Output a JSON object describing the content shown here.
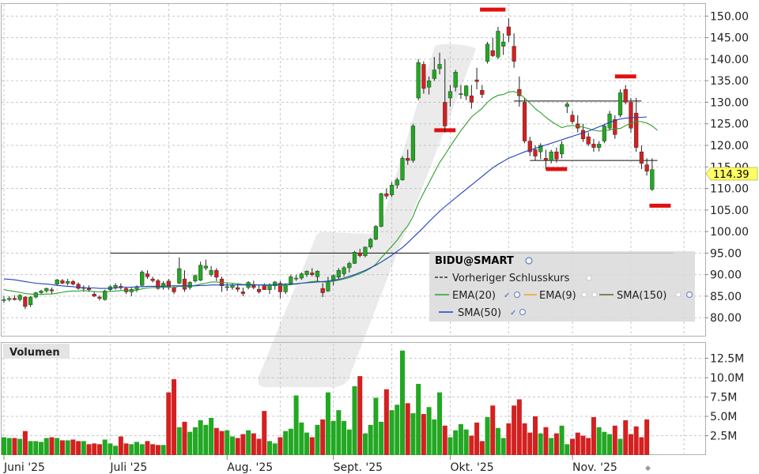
{
  "chart_data": {
    "type": "candlestick",
    "symbol_label": "BIDU@SMART",
    "last_price_label": "114.39",
    "price_axis": {
      "ylim": [
        76,
        153
      ],
      "ticks": [
        "150.00",
        "145.00",
        "140.00",
        "135.00",
        "130.00",
        "125.00",
        "120.00",
        "115.00",
        "110.00",
        "105.00",
        "100.00",
        "95.00",
        "90.00",
        "85.00",
        "80.00"
      ],
      "tick_values": [
        150,
        145,
        140,
        135,
        130,
        125,
        120,
        115,
        110,
        105,
        100,
        95,
        90,
        85,
        80
      ]
    },
    "volume_panel": {
      "label": "Volumen",
      "ylim": [
        0,
        14.5
      ],
      "ticks": [
        "12.5M",
        "10.0M",
        "7.5M",
        "5.0M",
        "2.5M"
      ],
      "tick_values": [
        12.5,
        10,
        7.5,
        5,
        2.5
      ]
    },
    "x_axis": {
      "labels": [
        {
          "text": "Juni '25",
          "index": 0
        },
        {
          "text": "Juli '25",
          "index": 20
        },
        {
          "text": "Aug. '25",
          "index": 42
        },
        {
          "text": "Sept. '25",
          "index": 62
        },
        {
          "text": "Okt. '25",
          "index": 84
        },
        {
          "text": "Nov. '25",
          "index": 107
        }
      ]
    },
    "legend": [
      {
        "text": "Vorheriger Schlusskurs",
        "style": "dashed",
        "color": "#333333"
      },
      {
        "text": "EMA(20)",
        "color": "#2aa02a"
      },
      {
        "text": "EMA(9)",
        "color": "#f0a030"
      },
      {
        "text": "SMA(150)",
        "color": "#556b2f"
      },
      {
        "text": "SMA(50)",
        "color": "#2848c8"
      }
    ],
    "colors": {
      "up": "#22a822",
      "down": "#d42020",
      "sma50": "#2040c0",
      "ema20": "#2aa02a",
      "marker": "#e01010"
    },
    "ohlc": [
      [
        84,
        85,
        83.5,
        84.2
      ],
      [
        84.2,
        85,
        83.8,
        84.5
      ],
      [
        84.5,
        85.2,
        84,
        84.2
      ],
      [
        84.2,
        85.5,
        83.8,
        85.2
      ],
      [
        84.8,
        85,
        82,
        82.6
      ],
      [
        83,
        85,
        82.5,
        84.8
      ],
      [
        84.8,
        86,
        84.5,
        85.8
      ],
      [
        85.8,
        86.5,
        85.5,
        86.2
      ],
      [
        86.2,
        87,
        85.8,
        86.8
      ],
      [
        86.5,
        87,
        85.5,
        86.2
      ],
      [
        87.8,
        89,
        87.5,
        88.8
      ],
      [
        88.6,
        89,
        87.8,
        88
      ],
      [
        88,
        89,
        87.5,
        88.4
      ],
      [
        88.4,
        88.8,
        87.5,
        87.8
      ],
      [
        87.8,
        88.2,
        86.5,
        86.8
      ],
      [
        86.8,
        87.5,
        86,
        87
      ],
      [
        86.8,
        87.5,
        86,
        86.5
      ],
      [
        85.5,
        86,
        84.8,
        85
      ],
      [
        84.8,
        85.2,
        84,
        84.5
      ],
      [
        84.2,
        86.5,
        84,
        86.2
      ],
      [
        86.5,
        87.5,
        86,
        87.2
      ],
      [
        87,
        88,
        86.5,
        87.5
      ],
      [
        87.3,
        88,
        86.5,
        87
      ],
      [
        86.8,
        87.2,
        85.5,
        86
      ],
      [
        86,
        87,
        85,
        86.6
      ],
      [
        86.6,
        87.5,
        86,
        87.2
      ],
      [
        87.5,
        91,
        87.3,
        90.6
      ],
      [
        90.2,
        91,
        89,
        89.5
      ],
      [
        89,
        89.5,
        88.2,
        88.6
      ],
      [
        88.6,
        89,
        86.5,
        86.8
      ],
      [
        87,
        88.5,
        86.5,
        88
      ],
      [
        88.5,
        89,
        86.5,
        87
      ],
      [
        87,
        87.5,
        85.5,
        86
      ],
      [
        88,
        94,
        87.8,
        91.4
      ],
      [
        89,
        91,
        86,
        86.6
      ],
      [
        87,
        88.5,
        86.5,
        88.2
      ],
      [
        88.5,
        90,
        88.2,
        89.8
      ],
      [
        88.7,
        93,
        88.5,
        92.2
      ],
      [
        91.5,
        93.5,
        91,
        92
      ],
      [
        90,
        92,
        89.5,
        91
      ],
      [
        91,
        91.5,
        88.5,
        89.4
      ],
      [
        89,
        89.5,
        86,
        87.4
      ],
      [
        87,
        88,
        86.2,
        87.2
      ],
      [
        87,
        88,
        86.5,
        87.6
      ],
      [
        87,
        88,
        86,
        86.6
      ],
      [
        86,
        87,
        85,
        85.6
      ],
      [
        87,
        88.5,
        86.6,
        88.2
      ],
      [
        87.6,
        88.6,
        86.6,
        87
      ],
      [
        86.6,
        87.6,
        85.6,
        86
      ],
      [
        87.5,
        88,
        86.5,
        86.5
      ],
      [
        86.5,
        88,
        85.5,
        87.6
      ],
      [
        87.4,
        88.5,
        86.5,
        88.3
      ],
      [
        88,
        88.5,
        84.5,
        86
      ],
      [
        86,
        88,
        85.5,
        87.6
      ],
      [
        88,
        90,
        87.5,
        89.5
      ],
      [
        89,
        90,
        88.5,
        89.2
      ],
      [
        89.2,
        90.5,
        88.8,
        90.2
      ],
      [
        90,
        91,
        89.5,
        90.8
      ],
      [
        90.4,
        91.5,
        89.6,
        90
      ],
      [
        89.5,
        91,
        88.5,
        90.8
      ],
      [
        86.8,
        88,
        84.8,
        85.8
      ],
      [
        86.2,
        89.5,
        86,
        88.4
      ],
      [
        88.5,
        90,
        87.5,
        89.8
      ],
      [
        89.4,
        91.5,
        89,
        91
      ],
      [
        90.2,
        92,
        89.5,
        91.6
      ],
      [
        91.6,
        93,
        90.5,
        92.6
      ],
      [
        92.6,
        95.5,
        92.5,
        95.2
      ],
      [
        95,
        96,
        94,
        94.4
      ],
      [
        94.4,
        96.5,
        94,
        96.4
      ],
      [
        96.4,
        98.5,
        96,
        98.2
      ],
      [
        98.2,
        101.5,
        98,
        101.2
      ],
      [
        101.2,
        109,
        101,
        108.8
      ],
      [
        108.8,
        110,
        107.5,
        108.2
      ],
      [
        108.5,
        111.5,
        108,
        110.8
      ],
      [
        110.8,
        112.5,
        110,
        112
      ],
      [
        112,
        117.5,
        111.8,
        117
      ],
      [
        117,
        119,
        115.5,
        116.5
      ],
      [
        116.5,
        125,
        116,
        124.5
      ],
      [
        131,
        140,
        130.5,
        139.2
      ],
      [
        138.8,
        139.5,
        132,
        133.2
      ],
      [
        133.5,
        136,
        131.8,
        135
      ],
      [
        135.5,
        140.5,
        135,
        137.5
      ],
      [
        137.8,
        141.5,
        136.5,
        138.8
      ],
      [
        130,
        140,
        123,
        124.5
      ],
      [
        131,
        134,
        129,
        132.5
      ],
      [
        133.5,
        137.5,
        132.5,
        137
      ],
      [
        132,
        134,
        130.8,
        132
      ],
      [
        131.5,
        134,
        130.5,
        133.8
      ],
      [
        131.5,
        134,
        128.5,
        130
      ],
      [
        135.2,
        138,
        133,
        134.8
      ],
      [
        132.8,
        134,
        131,
        131.8
      ],
      [
        139.5,
        144,
        139,
        143.5
      ],
      [
        142,
        145,
        140.5,
        140.8
      ],
      [
        140.5,
        147.5,
        140,
        146.5
      ],
      [
        143,
        146,
        141,
        144
      ],
      [
        147.5,
        149.5,
        144,
        145.5
      ],
      [
        143,
        146,
        138,
        139.5
      ],
      [
        133,
        136,
        129,
        131.5
      ],
      [
        130,
        131,
        120.5,
        121
      ],
      [
        121,
        122,
        117.5,
        118.5
      ],
      [
        119,
        120,
        116.5,
        117.5
      ],
      [
        118.5,
        120.5,
        116.8,
        120
      ],
      [
        117,
        119,
        114.5,
        116.5
      ],
      [
        116.5,
        119,
        115.8,
        118.5
      ],
      [
        118.5,
        119.5,
        116,
        116.8
      ],
      [
        118,
        121,
        117,
        120.2
      ],
      [
        129,
        130,
        127.5,
        129.6
      ],
      [
        127,
        128,
        125,
        125.5
      ],
      [
        125,
        127,
        123,
        124
      ],
      [
        123.5,
        125,
        120.8,
        121.5
      ],
      [
        122,
        123,
        119.8,
        120.3
      ],
      [
        120.3,
        121.5,
        118.5,
        119.5
      ],
      [
        119.5,
        121,
        118.6,
        120.3
      ],
      [
        121,
        125,
        120.5,
        124.5
      ],
      [
        124,
        128,
        123.4,
        127.3
      ],
      [
        126,
        127,
        121.5,
        122.5
      ],
      [
        127,
        133,
        126.5,
        132.2
      ],
      [
        133,
        134,
        129.5,
        130
      ],
      [
        130,
        131,
        123,
        124
      ],
      [
        127.5,
        131,
        118.5,
        119.5
      ],
      [
        118.5,
        120,
        114.5,
        115.8
      ],
      [
        115.5,
        117,
        113,
        114
      ],
      [
        109.8,
        117,
        109.4,
        114.39
      ]
    ],
    "volume": [
      2.3,
      2.2,
      2.2,
      2.1,
      3.1,
      1.8,
      1.8,
      1.7,
      2.2,
      2.3,
      2.2,
      1.9,
      1.9,
      2.0,
      1.8,
      1.8,
      1.4,
      1.5,
      1.4,
      2.0,
      1.5,
      1.2,
      2.4,
      1.5,
      1.4,
      1.7,
      1.4,
      1.8,
      1.4,
      1.3,
      1.3,
      8.1,
      9.8,
      3.6,
      4.3,
      3.0,
      3.6,
      4.5,
      3.9,
      4.8,
      3.5,
      3.1,
      3.2,
      2.4,
      2.2,
      2.7,
      3.2,
      2.8,
      2.1,
      5.7,
      1.8,
      1.5,
      2.3,
      3.1,
      3.4,
      7.7,
      4.2,
      2.9,
      2.3,
      3.9,
      4.6,
      8.1,
      4.4,
      5.8,
      4.4,
      3.3,
      8.9,
      10.2,
      2.8,
      3.9,
      7.4,
      4.3,
      8.5,
      5.8,
      6.5,
      13.5,
      6.7,
      5.4,
      9.2,
      5.3,
      6.2,
      4.6,
      8.1,
      3.8,
      2.3,
      3.2,
      4.0,
      3.3,
      2.5,
      4.2,
      1.8,
      4.9,
      6.4,
      3.5,
      2.2,
      4.1,
      6.4,
      7.2,
      4.1,
      2.9,
      5.0,
      2.8,
      3.6,
      2.2,
      2.8,
      3.8,
      1.4,
      2.1,
      2.9,
      2.5,
      2.2,
      4.9,
      3.6,
      3.0,
      2.7,
      3.8,
      2.1,
      4.5,
      2.7,
      3.7,
      2.3,
      4.6
    ],
    "sma50": [
      89,
      88.9,
      88.8,
      88.6,
      88.4,
      88.2,
      88,
      87.9,
      87.8,
      87.7,
      87.5,
      87.4,
      87.3,
      87.2,
      87.1,
      87,
      86.9,
      86.9,
      86.8,
      86.8,
      86.8,
      86.9,
      87,
      87.1,
      87.1,
      87.2,
      87.2,
      87.3,
      87.3,
      87.3,
      87.3,
      87.4,
      87.4,
      87.4,
      87.4,
      87.4,
      87.4,
      87.5,
      87.5,
      87.6,
      87.6,
      87.6,
      87.6,
      87.6,
      87.6,
      87.6,
      87.6,
      87.6,
      87.6,
      87.6,
      87.6,
      87.7,
      87.7,
      87.8,
      87.8,
      87.9,
      88,
      88.1,
      88.2,
      88.3,
      88.4,
      88.5,
      88.7,
      88.9,
      89.2,
      89.6,
      90,
      90.5,
      91,
      91.6,
      92.2,
      92.9,
      93.7,
      94.5,
      95.4,
      96.3,
      97.4,
      98.6,
      99.8,
      101,
      102.3,
      103.5,
      104.7,
      105.8,
      106.8,
      107.8,
      108.8,
      109.8,
      110.8,
      111.8,
      112.8,
      113.8,
      114.8,
      115.6,
      116.3,
      117,
      117.5,
      118,
      118.5,
      118.9,
      119.3,
      119.7,
      120.1,
      120.5,
      120.9,
      121.3,
      121.7,
      122.1,
      122.5,
      122.9,
      123.3,
      123.8,
      124.3,
      124.8,
      125.3,
      125.8,
      126.1,
      126.3,
      126.4,
      126.5,
      126.5,
      126.6
    ],
    "ema20": [
      86.5,
      86.3,
      86.1,
      85.9,
      85.6,
      85.5,
      85.4,
      85.4,
      85.5,
      85.5,
      85.7,
      85.9,
      86.1,
      86.2,
      86.2,
      86.3,
      86.2,
      86.1,
      86,
      86,
      86.1,
      86.2,
      86.3,
      86.3,
      86.3,
      86.4,
      86.7,
      86.9,
      87,
      87,
      87.1,
      87.1,
      87,
      87.3,
      87.2,
      87.3,
      87.5,
      87.8,
      88,
      88.3,
      88.3,
      88.2,
      88.1,
      88,
      87.9,
      87.7,
      87.8,
      87.7,
      87.6,
      87.5,
      87.5,
      87.6,
      87.5,
      87.5,
      87.7,
      87.8,
      88,
      88.2,
      88.4,
      88.5,
      88.3,
      88.3,
      88.5,
      88.7,
      89,
      89.3,
      89.8,
      90.2,
      90.8,
      91.5,
      92.4,
      93.9,
      95.2,
      96.6,
      98,
      99.8,
      101.3,
      103.5,
      106.6,
      109,
      111.3,
      113.7,
      116,
      117.8,
      119.8,
      121.6,
      123.4,
      125,
      126.6,
      127.6,
      128.6,
      130,
      131,
      131.6,
      131.8,
      132.4,
      132.5,
      132,
      131,
      129.8,
      128.5,
      127.6,
      126.5,
      125.6,
      124.8,
      124.1,
      124.5,
      124.6,
      124.5,
      124.2,
      123.9,
      123.5,
      123.3,
      123.4,
      123.6,
      123.9,
      123.9,
      124.6,
      125.1,
      125.6,
      125.5,
      125.2,
      124.5,
      123.5
    ],
    "annotations": {
      "resistance": {
        "y": 95,
        "from": 20,
        "to": 126
      },
      "neckline_top": {
        "y": 130.3,
        "from": 96,
        "to": 120
      },
      "neckline_low": {
        "y": 116.5,
        "from": 99,
        "to": 123
      },
      "high_markers": [
        {
          "index": 92,
          "y": 151.5,
          "halfwidth": 2.4
        },
        {
          "index": 117,
          "y": 136,
          "halfwidth": 2
        }
      ],
      "low_markers": [
        {
          "index": 83,
          "y": 123.5,
          "halfwidth": 2
        },
        {
          "index": 104,
          "y": 114.5,
          "halfwidth": 2
        },
        {
          "index": 123.5,
          "y": 106,
          "halfwidth": 2
        }
      ]
    }
  }
}
